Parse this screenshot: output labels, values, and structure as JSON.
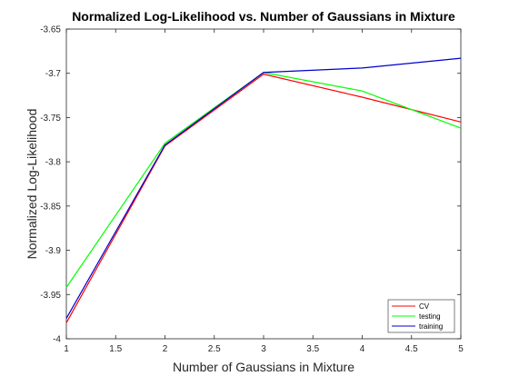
{
  "chart_data": {
    "type": "line",
    "title": "Normalized Log-Likelihood vs. Number of Gaussians in Mixture",
    "xlabel": "Number of Gaussians in Mixture",
    "ylabel": "Normalized Log-Likelihood",
    "xlim": [
      1,
      5
    ],
    "ylim": [
      -4,
      -3.65
    ],
    "xticks": [
      1,
      1.5,
      2,
      2.5,
      3,
      3.5,
      4,
      4.5,
      5
    ],
    "xtick_labels": [
      "1",
      "1.5",
      "2",
      "2.5",
      "3",
      "3.5",
      "4",
      "4.5",
      "5"
    ],
    "yticks": [
      -4,
      -3.95,
      -3.9,
      -3.85,
      -3.8,
      -3.75,
      -3.7,
      -3.65
    ],
    "ytick_labels": [
      "-4",
      "-3.95",
      "-3.9",
      "-3.85",
      "-3.8",
      "-3.75",
      "-3.7",
      "-3.65"
    ],
    "grid": false,
    "legend_position": "bottom-right",
    "x": [
      1,
      2,
      3,
      4,
      5
    ],
    "series": [
      {
        "name": "CV",
        "color": "#ff0000",
        "values": [
          -3.982,
          -3.782,
          -3.701,
          -3.727,
          -3.755
        ]
      },
      {
        "name": "testing",
        "color": "#00ff00",
        "values": [
          -3.942,
          -3.779,
          -3.699,
          -3.72,
          -3.762
        ]
      },
      {
        "name": "training",
        "color": "#0000cc",
        "values": [
          -3.977,
          -3.781,
          -3.699,
          -3.694,
          -3.683
        ]
      }
    ]
  }
}
